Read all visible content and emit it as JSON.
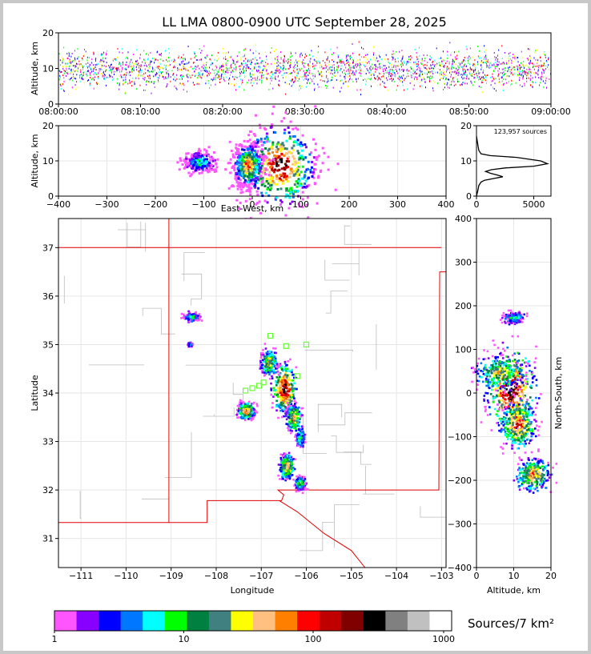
{
  "title": "LL LMA 0800-0900 UTC September 28, 2025",
  "chart_data": [
    {
      "type": "scatter",
      "panel": "altitude-time",
      "ylabel": "Altitude, km",
      "ylim": [
        0,
        20
      ],
      "yticks": [
        "0",
        "10",
        "20"
      ],
      "xticks": [
        "08:00:00",
        "08:10:00",
        "08:20:00",
        "08:30:00",
        "08:40:00",
        "08:50:00",
        "09:00:00"
      ],
      "dense_altitude_range_km": [
        3,
        17
      ],
      "core_altitude_km": 10
    },
    {
      "type": "heatmap",
      "panel": "east-west-altitude",
      "xlabel": "East-West, km",
      "ylabel": "Altitude, km",
      "xlim": [
        -400,
        400
      ],
      "ylim": [
        0,
        20
      ],
      "xticks": [
        "−400",
        "−300",
        "−200",
        "−100",
        "0",
        "100",
        "200",
        "300",
        "400"
      ],
      "yticks": [
        "0",
        "10",
        "20"
      ],
      "clusters": [
        {
          "x": -110,
          "alt": 10,
          "w": 40,
          "h": 4,
          "level": 0.35
        },
        {
          "x": 55,
          "alt": 9,
          "w": 100,
          "h": 16,
          "level": 1.0
        },
        {
          "x": -10,
          "alt": 9,
          "w": 40,
          "h": 8,
          "level": 0.8
        }
      ]
    },
    {
      "type": "line",
      "panel": "altitude-histogram",
      "annotation": "123,957 sources",
      "xticks": [
        "0",
        "5000"
      ],
      "yticks": [
        "0",
        "10",
        "20"
      ],
      "xlim": [
        0,
        6500
      ],
      "ylim": [
        0,
        20
      ],
      "x": [
        0,
        80,
        150,
        200,
        300,
        400,
        700,
        1500,
        2300,
        1800,
        1200,
        800,
        1300,
        2500,
        5000,
        6200,
        5600,
        3500,
        1200,
        400,
        200,
        150,
        100,
        50,
        0
      ],
      "y": [
        0,
        1,
        2,
        3,
        3.5,
        4,
        4.5,
        5,
        5.5,
        6,
        6.5,
        7,
        7.5,
        8,
        8.5,
        9.2,
        10,
        11,
        11.5,
        12,
        13,
        14,
        15,
        16,
        17
      ]
    },
    {
      "type": "scatter",
      "panel": "plan-view-map",
      "xlabel": "Longitude",
      "ylabel": "Latitude",
      "xlim": [
        -111.5,
        -102.9
      ],
      "ylim": [
        30.4,
        37.6
      ],
      "xticks": [
        "−111",
        "−110",
        "−109",
        "−108",
        "−107",
        "−106",
        "−105",
        "−104",
        "−103"
      ],
      "yticks": [
        "31",
        "32",
        "33",
        "34",
        "35",
        "36",
        "37"
      ],
      "stations": [
        {
          "lon": -106.8,
          "lat": 35.18
        },
        {
          "lon": -106.45,
          "lat": 34.97
        },
        {
          "lon": -106.0,
          "lat": 35.0
        },
        {
          "lon": -107.2,
          "lat": 34.1
        },
        {
          "lon": -107.35,
          "lat": 34.05
        },
        {
          "lon": -107.05,
          "lat": 34.15
        },
        {
          "lon": -106.95,
          "lat": 34.22
        },
        {
          "lon": -106.2,
          "lat": 34.35
        }
      ],
      "clusters": [
        {
          "lon": -106.5,
          "lat": 34.1,
          "rx": 0.28,
          "ry": 0.55,
          "level": 1.0
        },
        {
          "lon": -106.3,
          "lat": 33.5,
          "rx": 0.18,
          "ry": 0.3,
          "level": 0.7
        },
        {
          "lon": -106.85,
          "lat": 34.65,
          "rx": 0.2,
          "ry": 0.3,
          "level": 0.6
        },
        {
          "lon": -107.35,
          "lat": 33.65,
          "rx": 0.2,
          "ry": 0.18,
          "level": 0.8
        },
        {
          "lon": -106.45,
          "lat": 32.5,
          "rx": 0.18,
          "ry": 0.28,
          "level": 0.7
        },
        {
          "lon": -106.15,
          "lat": 32.15,
          "rx": 0.12,
          "ry": 0.15,
          "level": 0.5
        },
        {
          "lon": -108.55,
          "lat": 35.58,
          "rx": 0.2,
          "ry": 0.1,
          "level": 0.3
        },
        {
          "lon": -108.6,
          "lat": 35.02,
          "rx": 0.05,
          "ry": 0.04,
          "level": 0.3
        },
        {
          "lon": -106.15,
          "lat": 33.1,
          "rx": 0.1,
          "ry": 0.2,
          "level": 0.4
        }
      ]
    },
    {
      "type": "heatmap",
      "panel": "altitude-north-south",
      "xlabel": "Altitude, km",
      "ylabel": "North-South, km",
      "xlim": [
        0,
        20
      ],
      "ylim": [
        -400,
        400
      ],
      "xticks": [
        "0",
        "10",
        "20"
      ],
      "yticks": [
        "400",
        "300",
        "200",
        "100",
        "0",
        "−100",
        "−200",
        "−300",
        "−400"
      ],
      "clusters": [
        {
          "alt": 9,
          "ns": 10,
          "w": 7,
          "h": 100,
          "level": 1.0
        },
        {
          "alt": 11,
          "ns": -70,
          "w": 5,
          "h": 60,
          "level": 0.8
        },
        {
          "alt": 15,
          "ns": -185,
          "w": 5,
          "h": 40,
          "level": 0.7
        },
        {
          "alt": 10,
          "ns": 175,
          "w": 3,
          "h": 15,
          "level": 0.3
        },
        {
          "alt": 6,
          "ns": 50,
          "w": 7,
          "h": 40,
          "level": 0.6
        }
      ]
    },
    {
      "type": "table",
      "panel": "colorbar",
      "label": "Sources/7 km²",
      "ticks": [
        "1",
        "10",
        "100",
        "1000"
      ],
      "colors": [
        "#ff55ff",
        "#8800ff",
        "#0000ff",
        "#0077ff",
        "#00ffff",
        "#00ff00",
        "#008040",
        "#408080",
        "#ffff00",
        "#ffc080",
        "#ff8000",
        "#ff0000",
        "#c00000",
        "#800000",
        "#000000",
        "#808080",
        "#c0c0c0",
        "#ffffff"
      ]
    }
  ]
}
